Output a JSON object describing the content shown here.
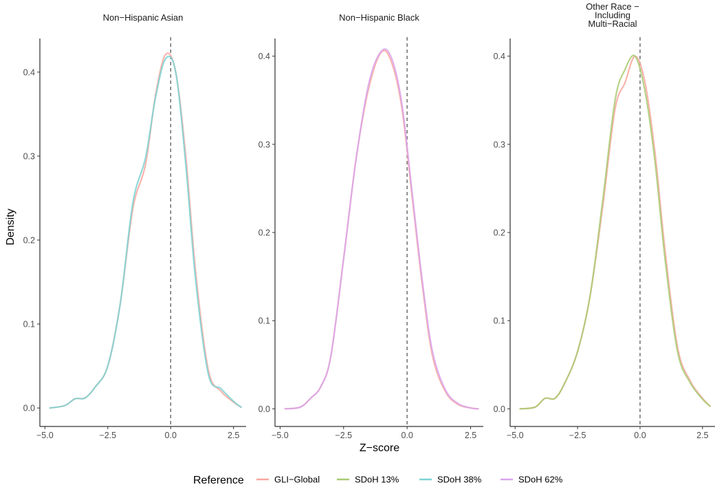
{
  "chart_data": {
    "type": "line",
    "xlabel": "Z−score",
    "ylabel": "Density",
    "legend": {
      "title": "Reference",
      "placement": "bottom",
      "entries": [
        {
          "name": "GLI−Global",
          "color": "#F8A79F"
        },
        {
          "name": "SDoH 13%",
          "color": "#A9CB73"
        },
        {
          "name": "SDoH 38%",
          "color": "#7DD3D3"
        },
        {
          "name": "SDoH 62%",
          "color": "#D9A5EC"
        }
      ]
    },
    "reference_line": {
      "x": 0,
      "style": "dashed"
    },
    "x_ticks": [
      -5.0,
      -2.5,
      0.0,
      2.5
    ],
    "x_tick_labels": [
      "−5.0",
      "−2.5",
      "0.0",
      "2.5"
    ],
    "panels": [
      {
        "title_lines": [
          "Non−Hispanic Asian"
        ],
        "xlim": [
          -5.2,
          3.0
        ],
        "ylim": [
          -0.022,
          0.44
        ],
        "y_ticks": [
          0.0,
          0.1,
          0.2,
          0.3,
          0.4
        ],
        "y_tick_labels": [
          "0.0",
          "0.1",
          "0.2",
          "0.3",
          "0.4"
        ],
        "x": [
          -4.8,
          -4.2,
          -3.8,
          -3.4,
          -3.0,
          -2.5,
          -2.0,
          -1.5,
          -1.0,
          -0.6,
          -0.2,
          0.2,
          0.6,
          1.0,
          1.5,
          2.0,
          2.5,
          2.8
        ],
        "series": [
          {
            "name": "GLI−Global",
            "values": [
              0.0,
              0.003,
              0.011,
              0.012,
              0.025,
              0.05,
              0.125,
              0.238,
              0.29,
              0.373,
              0.421,
              0.4,
              0.3,
              0.16,
              0.045,
              0.02,
              0.007,
              0.001
            ]
          },
          {
            "name": "SDoH 38%",
            "values": [
              0.0,
              0.003,
              0.011,
              0.012,
              0.025,
              0.05,
              0.125,
              0.245,
              0.298,
              0.37,
              0.416,
              0.4,
              0.29,
              0.15,
              0.04,
              0.023,
              0.008,
              0.001
            ]
          }
        ]
      },
      {
        "title_lines": [
          "Non−Hispanic Black"
        ],
        "xlim": [
          -5.2,
          3.0
        ],
        "ylim": [
          -0.02,
          0.42
        ],
        "y_ticks": [
          0.0,
          0.1,
          0.2,
          0.3,
          0.4
        ],
        "y_tick_labels": [
          "0.0",
          "0.1",
          "0.2",
          "0.3",
          "0.4"
        ],
        "x": [
          -4.8,
          -4.2,
          -3.8,
          -3.4,
          -3.0,
          -2.5,
          -2.0,
          -1.5,
          -1.0,
          -0.6,
          -0.2,
          0.2,
          0.6,
          1.0,
          1.5,
          2.0,
          2.5,
          2.8
        ],
        "series": [
          {
            "name": "GLI−Global",
            "values": [
              0.0,
              0.002,
              0.012,
              0.025,
              0.06,
              0.17,
              0.285,
              0.365,
              0.405,
              0.392,
              0.34,
              0.24,
              0.14,
              0.06,
              0.02,
              0.005,
              0.001,
              0.0
            ]
          },
          {
            "name": "SDoH 62%",
            "values": [
              0.0,
              0.002,
              0.012,
              0.025,
              0.06,
              0.17,
              0.285,
              0.37,
              0.406,
              0.397,
              0.345,
              0.245,
              0.145,
              0.065,
              0.022,
              0.006,
              0.001,
              0.0
            ]
          }
        ]
      },
      {
        "title_lines": [
          "Other Race −",
          "Including",
          "Multi−Racial"
        ],
        "xlim": [
          -5.2,
          3.0
        ],
        "ylim": [
          -0.02,
          0.42
        ],
        "y_ticks": [
          0.0,
          0.1,
          0.2,
          0.3,
          0.4
        ],
        "y_tick_labels": [
          "0.0",
          "0.1",
          "0.2",
          "0.3",
          "0.4"
        ],
        "x": [
          -4.8,
          -4.2,
          -3.8,
          -3.4,
          -3.0,
          -2.5,
          -2.0,
          -1.5,
          -1.0,
          -0.6,
          -0.2,
          0.2,
          0.6,
          1.0,
          1.5,
          2.0,
          2.5,
          2.8
        ],
        "series": [
          {
            "name": "GLI−Global",
            "values": [
              0.0,
              0.002,
              0.012,
              0.012,
              0.03,
              0.065,
              0.128,
              0.228,
              0.34,
              0.37,
              0.4,
              0.37,
              0.29,
              0.18,
              0.07,
              0.032,
              0.012,
              0.003
            ]
          },
          {
            "name": "SDoH 13%",
            "values": [
              0.0,
              0.002,
              0.012,
              0.012,
              0.03,
              0.065,
              0.128,
              0.235,
              0.35,
              0.385,
              0.4,
              0.36,
              0.28,
              0.17,
              0.065,
              0.03,
              0.011,
              0.003
            ]
          }
        ]
      }
    ]
  }
}
